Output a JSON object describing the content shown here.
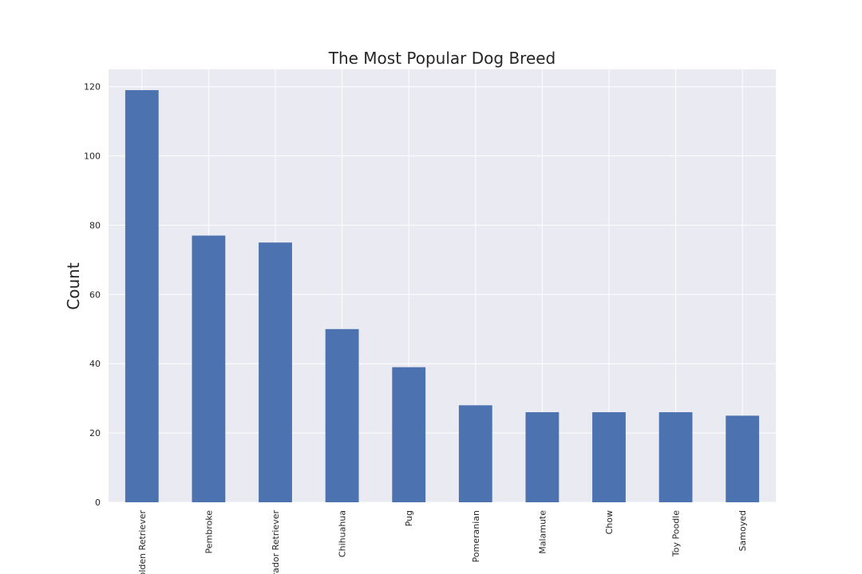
{
  "chart_data": {
    "type": "bar",
    "title": "The Most Popular Dog Breed",
    "xlabel": "",
    "ylabel": "Count",
    "categories": [
      "Golden Retriever",
      "Pembroke",
      "Labrador Retriever",
      "Chihuahua",
      "Pug",
      "Pomeranian",
      "Malamute",
      "Chow",
      "Toy Poodle",
      "Samoyed"
    ],
    "values": [
      119,
      77,
      75,
      50,
      39,
      28,
      26,
      26,
      26,
      25
    ],
    "ylim": [
      0,
      125
    ],
    "yticks": [
      0,
      20,
      40,
      60,
      80,
      100,
      120
    ],
    "grid": true,
    "legend": "none",
    "colors": {
      "bar": "#4c72b0",
      "plot_background": "#eaeaf2",
      "grid": "#ffffff",
      "text": "#262626"
    }
  }
}
